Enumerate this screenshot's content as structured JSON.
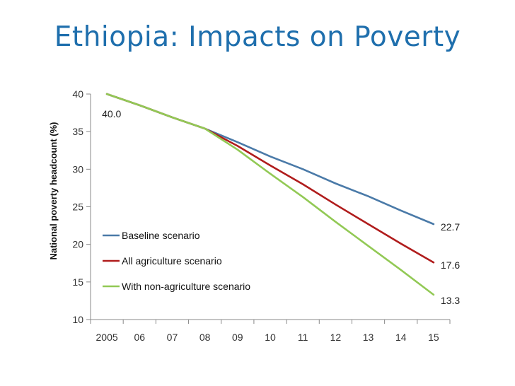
{
  "slide": {
    "title": "Ethiopia: Impacts on Poverty"
  },
  "chart_data": {
    "type": "line",
    "title": "",
    "xlabel": "",
    "ylabel": "National poverty headcount (%)",
    "ylim": [
      10,
      40
    ],
    "yticks": [
      10,
      15,
      20,
      25,
      30,
      35,
      40
    ],
    "x": [
      "2005",
      "06",
      "07",
      "08",
      "09",
      "10",
      "11",
      "12",
      "13",
      "14",
      "15"
    ],
    "grid": false,
    "legend_position": "lower-left",
    "series": [
      {
        "name": "Baseline scenario",
        "color": "#4a7aa8",
        "values": [
          40.0,
          38.5,
          36.9,
          35.4,
          33.6,
          31.7,
          30.0,
          28.1,
          26.4,
          24.5,
          22.7
        ]
      },
      {
        "name": "All agriculture scenario",
        "color": "#b01c1c",
        "values": [
          40.0,
          38.5,
          36.9,
          35.4,
          33.1,
          30.5,
          28.0,
          25.3,
          22.7,
          20.1,
          17.6
        ]
      },
      {
        "name": "With non-agriculture scenario",
        "color": "#92c955",
        "values": [
          40.0,
          38.5,
          36.9,
          35.4,
          32.6,
          29.4,
          26.3,
          23.0,
          19.8,
          16.6,
          13.3
        ]
      }
    ],
    "data_labels": [
      {
        "text": "40.0",
        "series": 0,
        "index": 0
      },
      {
        "text": "22.7",
        "series": 0,
        "index": 10
      },
      {
        "text": "17.6",
        "series": 1,
        "index": 10
      },
      {
        "text": "13.3",
        "series": 2,
        "index": 10
      }
    ]
  }
}
